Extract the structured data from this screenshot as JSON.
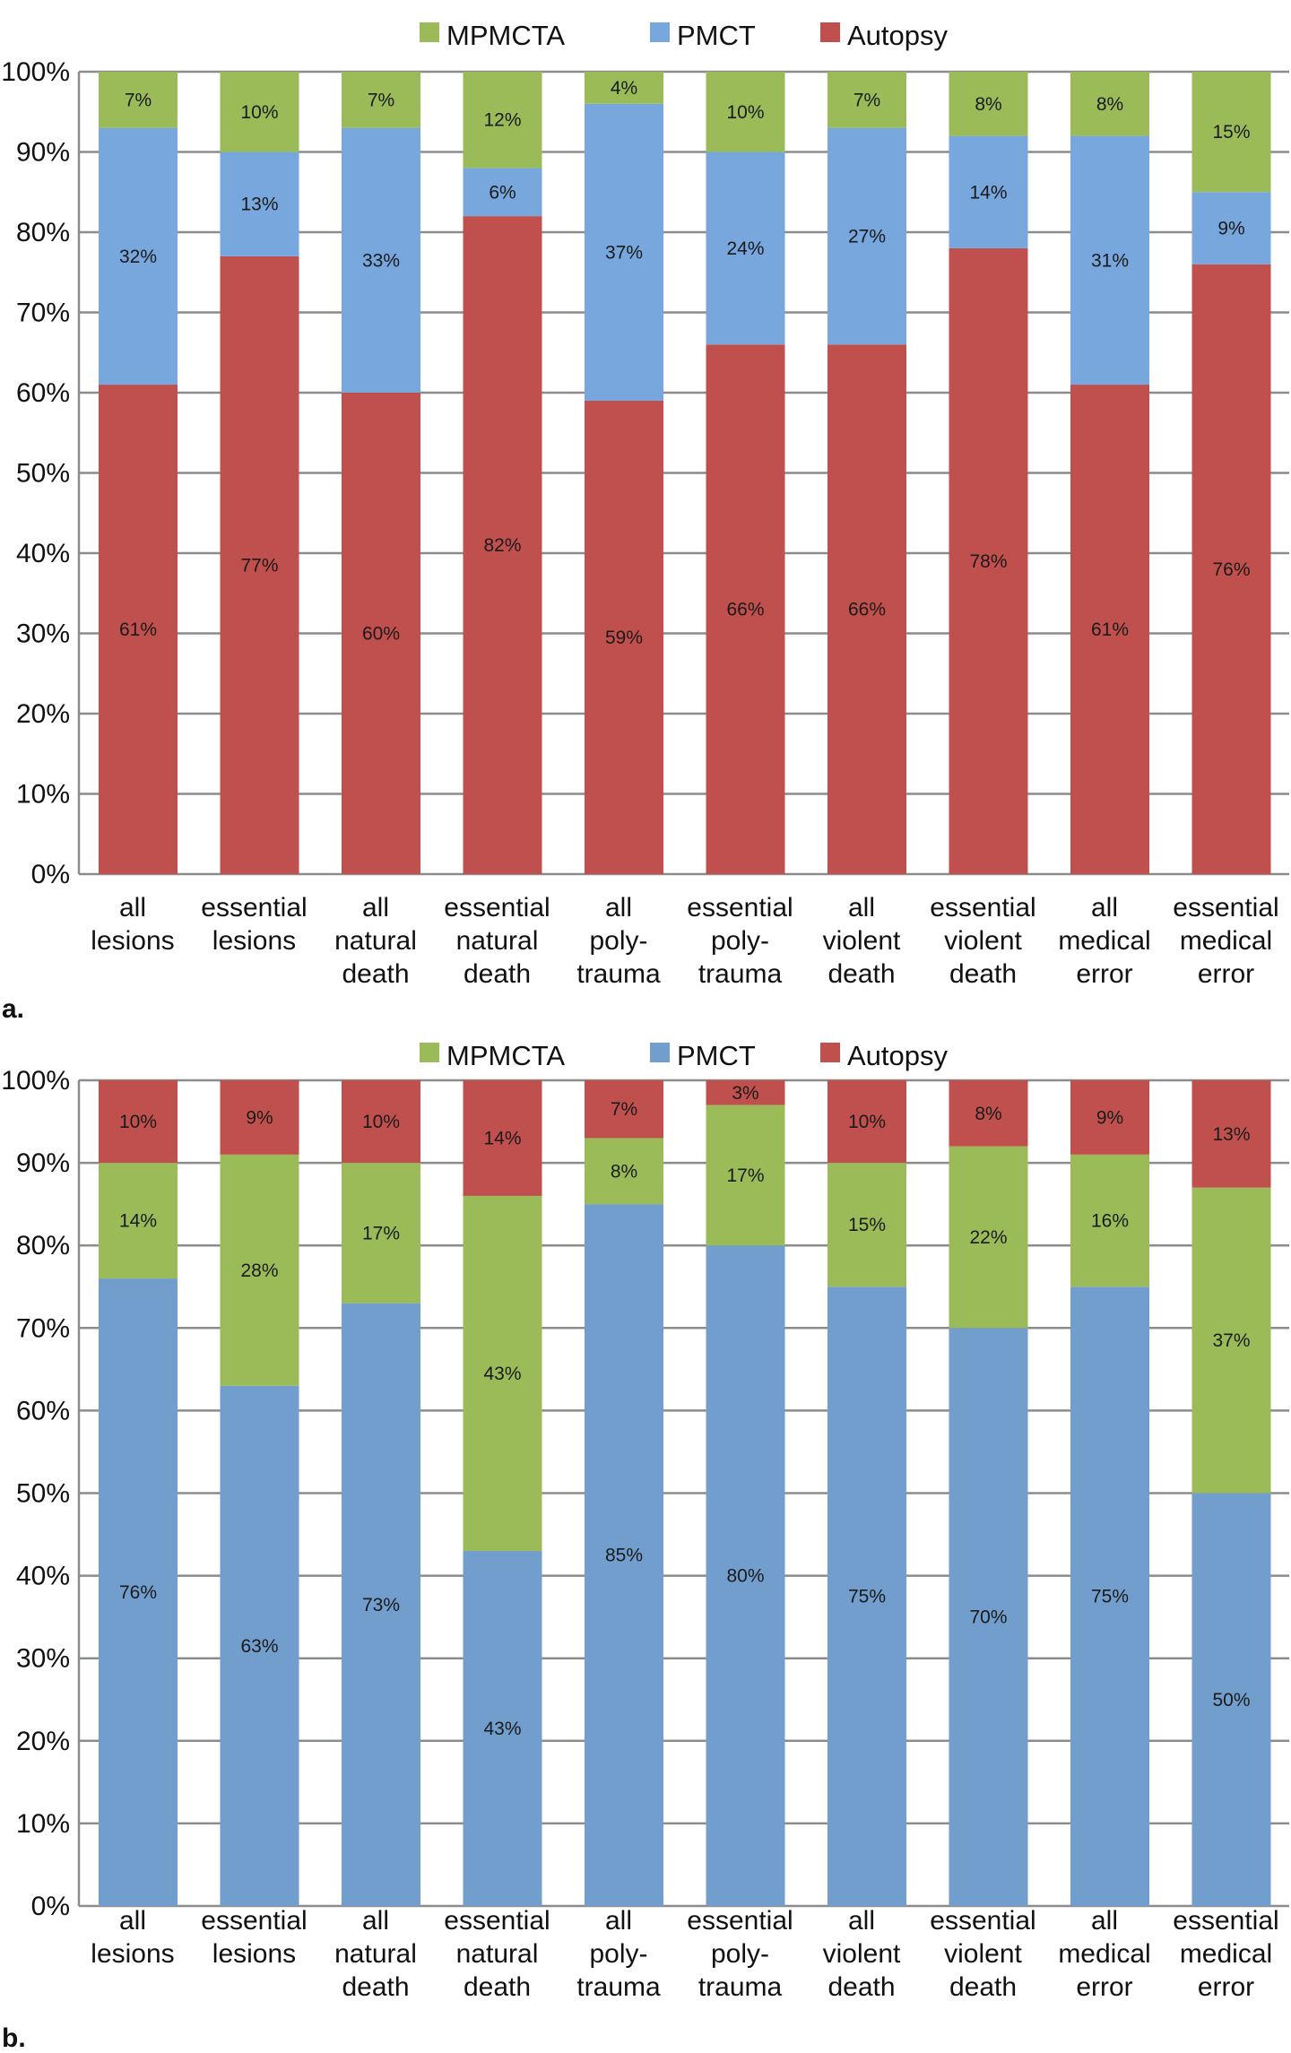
{
  "chart_data": [
    {
      "type": "bar",
      "stacked": true,
      "panel_label": "a.",
      "categories": [
        [
          "all",
          "lesions"
        ],
        [
          "essential",
          "lesions"
        ],
        [
          "all",
          "natural",
          "death"
        ],
        [
          "essential",
          "natural",
          "death"
        ],
        [
          "all",
          "poly-",
          "trauma"
        ],
        [
          "essential",
          "poly-",
          "trauma"
        ],
        [
          "all",
          "violent",
          "death"
        ],
        [
          "essential",
          "violent",
          "death"
        ],
        [
          "all",
          "medical",
          "error"
        ],
        [
          "essential",
          "medical",
          "error"
        ]
      ],
      "legend": [
        "MPMCTA",
        "PMCT",
        "Autopsy"
      ],
      "legend_placement": "top",
      "stack_order_bottom_to_top": [
        "Autopsy",
        "PMCT",
        "MPMCTA"
      ],
      "series": [
        {
          "name": "Autopsy",
          "color": "#c0504d",
          "values": [
            61,
            77,
            60,
            82,
            59,
            66,
            66,
            78,
            61,
            76
          ]
        },
        {
          "name": "PMCT",
          "color": "#77a7dd",
          "values": [
            32,
            13,
            33,
            6,
            37,
            24,
            27,
            14,
            31,
            9
          ]
        },
        {
          "name": "MPMCTA",
          "color": "#9bbb59",
          "values": [
            7,
            10,
            7,
            12,
            4,
            10,
            7,
            8,
            8,
            15
          ]
        }
      ],
      "yticks": [
        "0%",
        "10%",
        "20%",
        "30%",
        "40%",
        "50%",
        "60%",
        "70%",
        "80%",
        "90%",
        "100%"
      ],
      "ylim": [
        0,
        100
      ],
      "grid": true
    },
    {
      "type": "bar",
      "stacked": true,
      "panel_label": "b.",
      "categories": [
        [
          "all",
          "lesions"
        ],
        [
          "essential",
          "lesions"
        ],
        [
          "all",
          "natural",
          "death"
        ],
        [
          "essential",
          "natural",
          "death"
        ],
        [
          "all",
          "poly-",
          "trauma"
        ],
        [
          "essential",
          "poly-",
          "trauma"
        ],
        [
          "all",
          "violent",
          "death"
        ],
        [
          "essential",
          "violent",
          "death"
        ],
        [
          "all",
          "medical",
          "error"
        ],
        [
          "essential",
          "medical",
          "error"
        ]
      ],
      "legend": [
        "MPMCTA",
        "PMCT",
        "Autopsy"
      ],
      "legend_placement": "top",
      "stack_order_bottom_to_top": [
        "PMCT",
        "MPMCTA",
        "Autopsy"
      ],
      "series": [
        {
          "name": "PMCT",
          "color": "#729ece",
          "values": [
            76,
            63,
            73,
            43,
            85,
            80,
            75,
            70,
            75,
            50
          ]
        },
        {
          "name": "MPMCTA",
          "color": "#9bbb59",
          "values": [
            14,
            28,
            17,
            43,
            8,
            17,
            15,
            22,
            16,
            37
          ]
        },
        {
          "name": "Autopsy",
          "color": "#c0504d",
          "values": [
            10,
            9,
            10,
            14,
            7,
            3,
            10,
            8,
            9,
            13
          ]
        }
      ],
      "yticks": [
        "0%",
        "10%",
        "20%",
        "30%",
        "40%",
        "50%",
        "60%",
        "70%",
        "80%",
        "90%",
        "100%"
      ],
      "ylim": [
        0,
        100
      ],
      "grid": true
    }
  ]
}
